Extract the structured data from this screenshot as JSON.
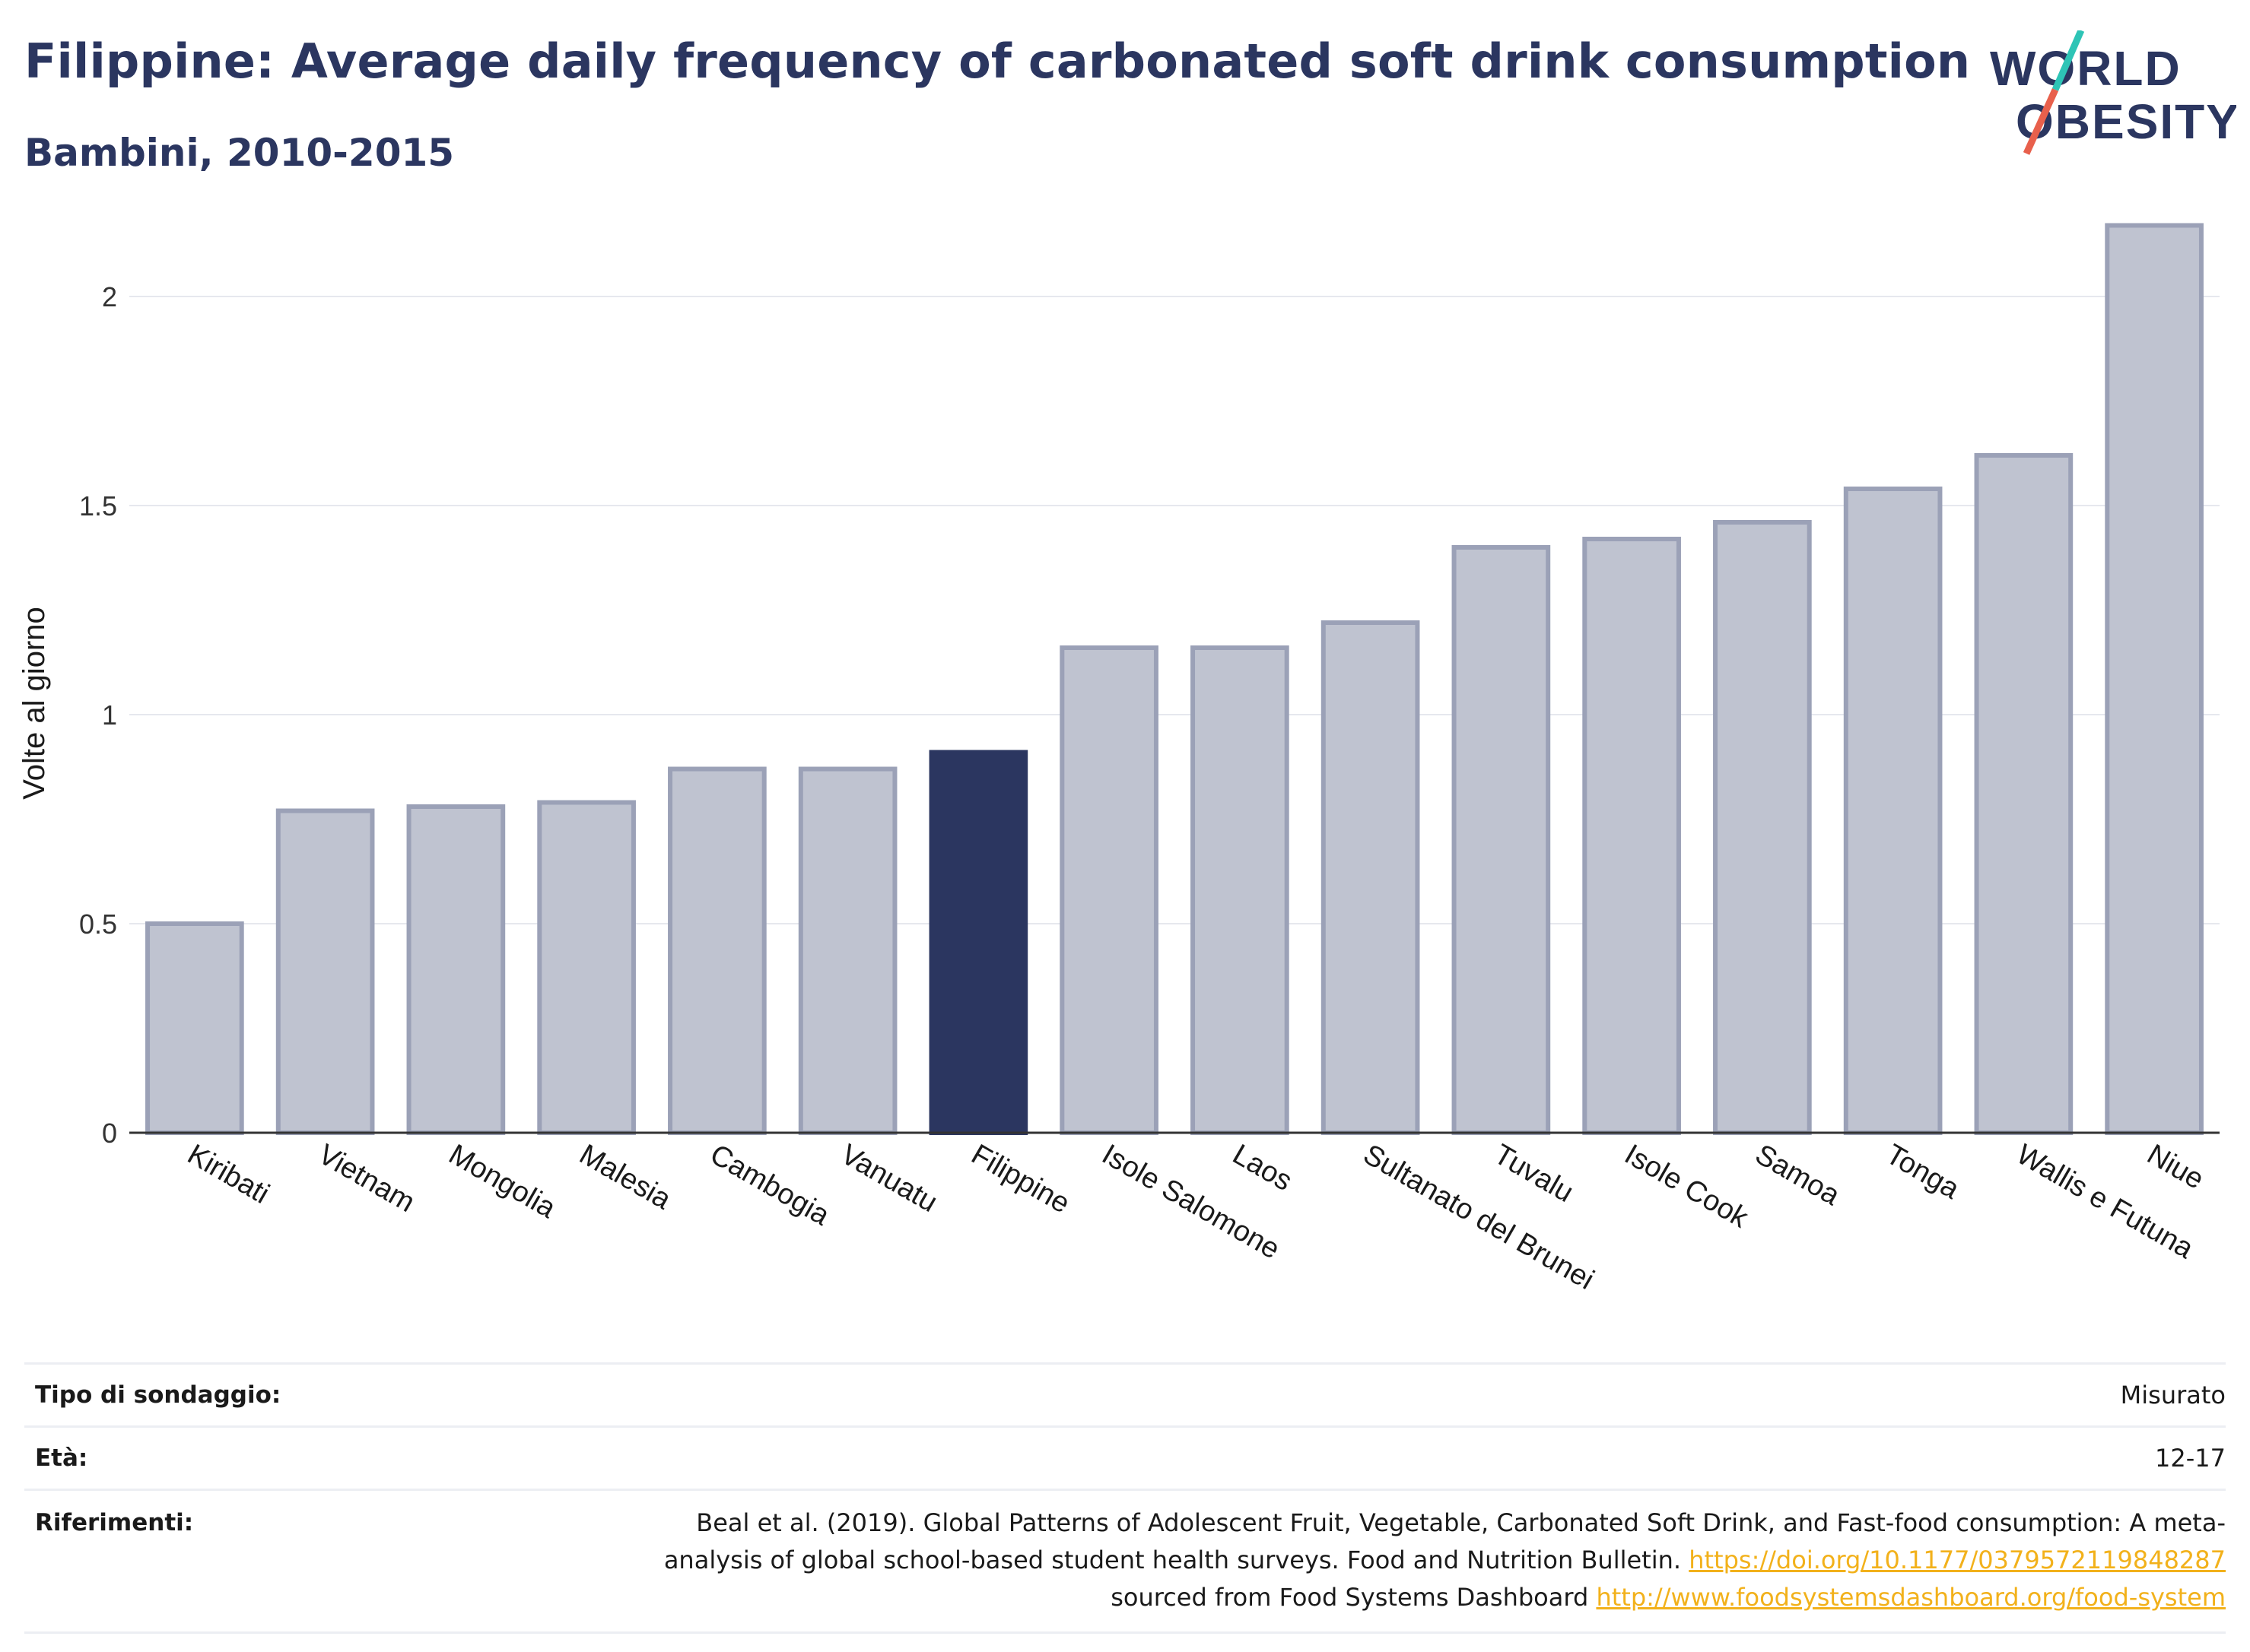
{
  "header": {
    "title": "Filippine: Average daily frequency of carbonated soft drink consumption",
    "subtitle": "Bambini, 2010-2015"
  },
  "logo": {
    "line1": "WORLD",
    "line2": "OBESITY",
    "colors": {
      "text": "#2b3660",
      "slash_top": "#2ec4b6",
      "slash_bottom": "#e8604c"
    }
  },
  "chart_data": {
    "type": "bar",
    "title": "Filippine: Average daily frequency of carbonated soft drink consumption",
    "subtitle": "Bambini, 2010-2015",
    "xlabel": "",
    "ylabel": "Volte al giorno",
    "ylim": [
      0,
      2.2
    ],
    "yticks": [
      0,
      0.5,
      1,
      1.5,
      2
    ],
    "ytick_labels": [
      "0",
      "0.5",
      "1",
      "1.5",
      "2"
    ],
    "grid": true,
    "categories": [
      "Kiribati",
      "Vietnam",
      "Mongolia",
      "Malesia",
      "Cambogia",
      "Vanuatu",
      "Filippine",
      "Isole Salomone",
      "Laos",
      "Sultanato del Brunei",
      "Tuvalu",
      "Isole Cook",
      "Samoa",
      "Tonga",
      "Wallis e Futuna",
      "Niue"
    ],
    "values": [
      0.5,
      0.77,
      0.78,
      0.79,
      0.87,
      0.87,
      0.91,
      1.16,
      1.16,
      1.22,
      1.4,
      1.42,
      1.46,
      1.54,
      1.62,
      2.17
    ],
    "highlight": "Filippine",
    "colors": {
      "bar": "#bfc3d0",
      "bar_edge": "#9ba1b7",
      "highlight": "#2b3660"
    }
  },
  "info": {
    "survey_type": {
      "label": "Tipo di sondaggio:",
      "value": "Misurato"
    },
    "age": {
      "label": "Età:",
      "value": "12-17"
    },
    "references": {
      "label": "Riferimenti:",
      "text_1": "Beal et al. (2019). Global Patterns of Adolescent Fruit, Vegetable, Carbonated Soft Drink, and Fast-food consumption: A meta-analysis of global school-based student health surveys. Food and Nutrition Bulletin. ",
      "link_1": "https://doi.org/10.1177/0379572119848287",
      "text_2": " sourced from Food Systems Dashboard ",
      "link_2": "http://www.foodsystemsdashboard.org/food-system"
    }
  }
}
